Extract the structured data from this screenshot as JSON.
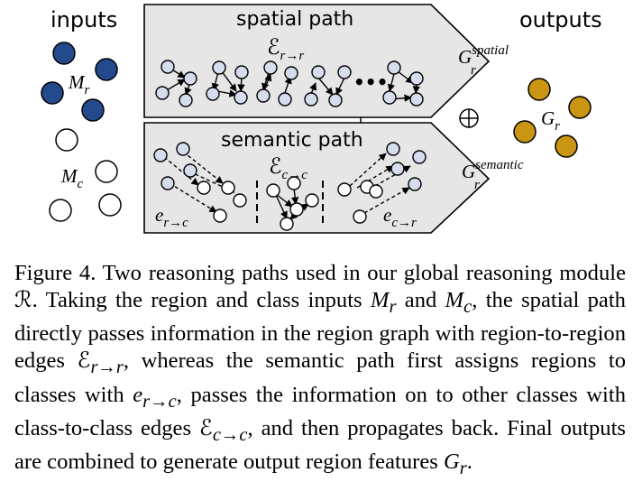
{
  "figure": {
    "inputs_label": "inputs",
    "outputs_label": "outputs",
    "spatial_title": "spatial path",
    "semantic_title": "semantic path",
    "m_r": "M",
    "m_r_sub": "r",
    "m_c": "M",
    "m_c_sub": "c",
    "g_r": "G",
    "g_r_sub": "r",
    "eps_rr": "ℰ",
    "eps_rr_sub": "r→r",
    "eps_cc": "ℰ",
    "eps_cc_sub": "c→c",
    "e_rc": "e",
    "e_rc_sub": "r→c",
    "e_cr": "e",
    "e_cr_sub": "c→r",
    "g_spatial": "G",
    "g_spatial_sup": "spatial",
    "g_spatial_sub": "r",
    "g_semantic": "G",
    "g_semantic_sup": "semantic",
    "g_semantic_sub": "r",
    "ellipsis": "•••",
    "combine_symbol": "⊕",
    "colors": {
      "region": "#234a8c",
      "output": "#c99512",
      "class": "#ffffff",
      "small_node": "#d4dcee",
      "panel": "#e6e6e6"
    }
  },
  "caption": {
    "text_1": "Figure 4. Two reasoning paths used in our global reasoning module ",
    "R": "ℛ",
    "text_2": ". Taking the region and class inputs ",
    "Mr": "M",
    "Mr_sub": "r",
    "text_3": " and ",
    "Mc": "M",
    "Mc_sub": "c",
    "text_4": ", the spatial path directly passes information in the region graph with region-to-region edges ",
    "Err": "ℰ",
    "Err_sub": "r→r",
    "text_5": ", whereas the semantic path first assigns regions to classes with ",
    "erc": "e",
    "erc_sub": "r→c",
    "text_6": ", passes the information on to other classes with class-to-class edges ",
    "Ecc": "ℰ",
    "Ecc_sub": "c→c",
    "text_7": ", and then propagates back. Final outputs are combined to generate output region features ",
    "Gr": "G",
    "Gr_sub": "r",
    "text_8": "."
  }
}
